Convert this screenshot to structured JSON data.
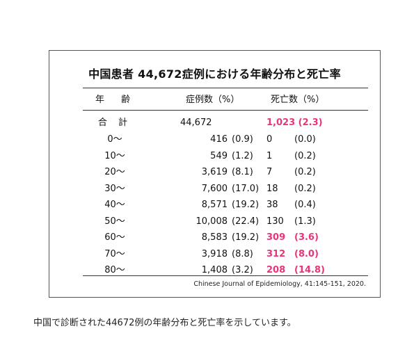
{
  "table": {
    "title": "中国患者 44,672症例における年齢分布と死亡率",
    "headers": {
      "age": "年 齢",
      "cases": "症例数（%）",
      "deaths": "死亡数（%）"
    },
    "total": {
      "age": "合 計",
      "cases": "44,672",
      "deaths": "1,023 (2.3)"
    },
    "rows": [
      {
        "age": "0〜",
        "cases": "416",
        "cases_pct": "(0.9)",
        "deaths": "0",
        "deaths_pct": "(0.0)",
        "highlight": false
      },
      {
        "age": "10〜",
        "cases": "549",
        "cases_pct": "(1.2)",
        "deaths": "1",
        "deaths_pct": "(0.2)",
        "highlight": false
      },
      {
        "age": "20〜",
        "cases": "3,619",
        "cases_pct": "(8.1)",
        "deaths": "7",
        "deaths_pct": "(0.2)",
        "highlight": false
      },
      {
        "age": "30〜",
        "cases": "7,600",
        "cases_pct": "(17.0)",
        "deaths": "18",
        "deaths_pct": "(0.2)",
        "highlight": false
      },
      {
        "age": "40〜",
        "cases": "8,571",
        "cases_pct": "(19.2)",
        "deaths": "38",
        "deaths_pct": "(0.4)",
        "highlight": false
      },
      {
        "age": "50〜",
        "cases": "10,008",
        "cases_pct": "(22.4)",
        "deaths": "130",
        "deaths_pct": "(1.3)",
        "highlight": false
      },
      {
        "age": "60〜",
        "cases": "8,583",
        "cases_pct": "(19.2)",
        "deaths": "309",
        "deaths_pct": "(3.6)",
        "highlight": true
      },
      {
        "age": "70〜",
        "cases": "3,918",
        "cases_pct": "(8.8)",
        "deaths": "312",
        "deaths_pct": "(8.0)",
        "highlight": true
      },
      {
        "age": "80〜",
        "cases": "1,408",
        "cases_pct": "(3.2)",
        "deaths": "208",
        "deaths_pct": "(14.8)",
        "highlight": true
      }
    ],
    "source": "Chinese Journal of Epidemiology, 41:145-151, 2020."
  },
  "caption": "中国で診断された44672例の年齢分布と死亡率を示しています。",
  "colors": {
    "highlight": "#e8357a",
    "text": "#111111",
    "border": "#555555"
  }
}
